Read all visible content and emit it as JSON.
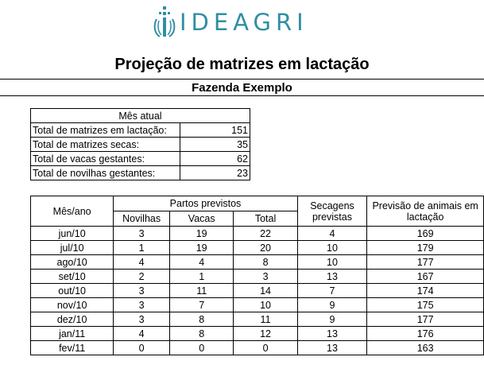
{
  "logo": {
    "text": "IDEAGRI",
    "icon": "ideagri-logo-mark"
  },
  "title": "Projeção de matrizes em lactação",
  "subtitle": "Fazenda Exemplo",
  "current_month": {
    "header": "Mês atual",
    "rows": [
      {
        "label": "Total de matrizes em lactação:",
        "value": "151"
      },
      {
        "label": "Total de matrizes secas:",
        "value": "35"
      },
      {
        "label": "Total de vacas gestantes:",
        "value": "62"
      },
      {
        "label": "Total de novilhas gestantes:",
        "value": "23"
      }
    ]
  },
  "projection": {
    "headers": {
      "month": "Mês/ano",
      "births_group": "Partos previstos",
      "heifers": "Novilhas",
      "cows": "Vacas",
      "total": "Total",
      "dry_offs": "Secagens previstas",
      "forecast": "Previsão de animais em lactação"
    },
    "rows": [
      {
        "month": "jun/10",
        "heifers": "3",
        "cows": "19",
        "total": "22",
        "dry": "4",
        "forecast": "169"
      },
      {
        "month": "jul/10",
        "heifers": "1",
        "cows": "19",
        "total": "20",
        "dry": "10",
        "forecast": "179"
      },
      {
        "month": "ago/10",
        "heifers": "4",
        "cows": "4",
        "total": "8",
        "dry": "10",
        "forecast": "177"
      },
      {
        "month": "set/10",
        "heifers": "2",
        "cows": "1",
        "total": "3",
        "dry": "13",
        "forecast": "167"
      },
      {
        "month": "out/10",
        "heifers": "3",
        "cows": "11",
        "total": "14",
        "dry": "7",
        "forecast": "174"
      },
      {
        "month": "nov/10",
        "heifers": "3",
        "cows": "7",
        "total": "10",
        "dry": "9",
        "forecast": "175"
      },
      {
        "month": "dez/10",
        "heifers": "3",
        "cows": "8",
        "total": "11",
        "dry": "9",
        "forecast": "177"
      },
      {
        "month": "jan/11",
        "heifers": "4",
        "cows": "8",
        "total": "12",
        "dry": "13",
        "forecast": "176"
      },
      {
        "month": "fev/11",
        "heifers": "0",
        "cows": "0",
        "total": "0",
        "dry": "13",
        "forecast": "163"
      }
    ]
  },
  "colors": {
    "brand": "#2f8fa3"
  }
}
